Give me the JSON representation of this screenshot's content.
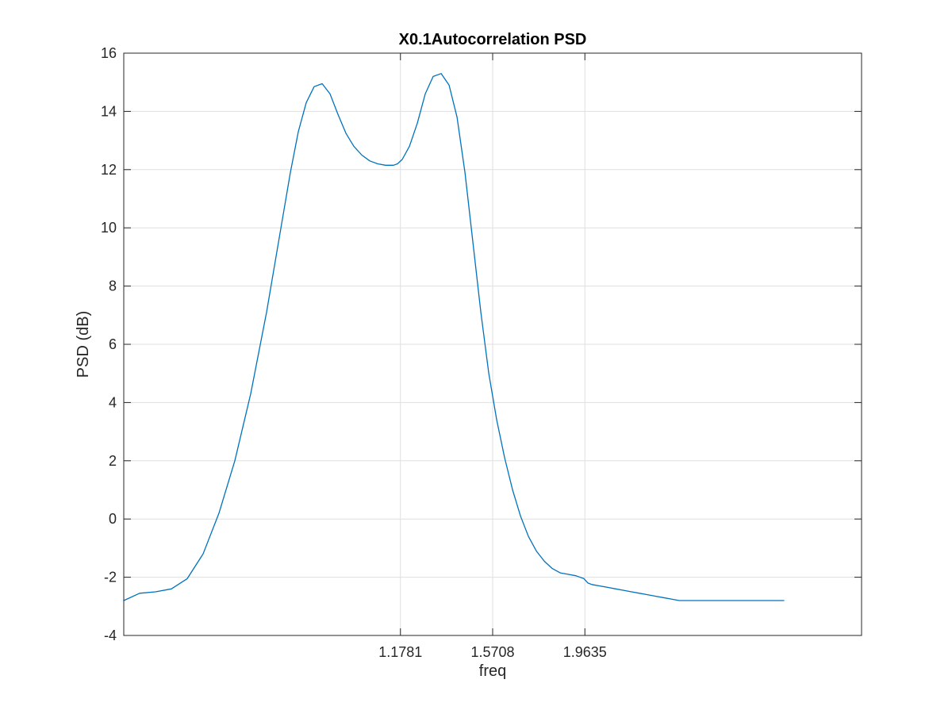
{
  "chart_data": {
    "type": "line",
    "title": "X0.1Autocorrelation PSD",
    "xlabel": "freq",
    "ylabel": "PSD (dB)",
    "xlim": [
      0,
      3.1416
    ],
    "ylim": [
      -4,
      16
    ],
    "xticks": [
      1.1781,
      1.5708,
      1.9635
    ],
    "xtick_labels": [
      "1.1781",
      "1.5708",
      "1.9635"
    ],
    "yticks": [
      -4,
      -2,
      0,
      2,
      4,
      6,
      8,
      10,
      12,
      14,
      16
    ],
    "ytick_labels": [
      "-4",
      "-2",
      "0",
      "2",
      "4",
      "6",
      "8",
      "10",
      "12",
      "14",
      "16"
    ],
    "grid": true,
    "line_color": "#0072bd",
    "series": [
      {
        "x": [
          0,
          0.0676,
          0.1352,
          0.2027,
          0.2703,
          0.3379,
          0.4055,
          0.473,
          0.5406,
          0.6082,
          0.6757,
          0.7095,
          0.7433,
          0.7771,
          0.8109,
          0.8447,
          0.8784,
          0.9122,
          0.946,
          0.9798,
          1.0136,
          1.0474,
          1.0812,
          1.1149,
          1.1487,
          1.1656,
          1.1858,
          1.2163,
          1.2501,
          1.2838,
          1.3176,
          1.3514,
          1.3852,
          1.419,
          1.4528,
          1.4866,
          1.5203,
          1.5541,
          1.5879,
          1.6217,
          1.6555,
          1.6893,
          1.7231,
          1.7568,
          1.7906,
          1.8244,
          1.8582,
          1.892,
          1.9258,
          1.9596,
          1.9765,
          1.9934,
          2.0271,
          2.0609,
          2.0947,
          2.1285,
          2.1623,
          2.1961,
          2.2298,
          2.2636,
          2.2974,
          2.3312,
          2.365,
          2.3988,
          2.4326,
          2.5001,
          2.5677,
          2.6353,
          2.7028,
          2.7704,
          2.811
        ],
        "y": [
          -2.8,
          -2.55,
          -2.5,
          -2.4,
          -2.05,
          -1.2,
          0.2,
          2.0,
          4.3,
          7.1,
          10.3,
          11.9,
          13.3,
          14.3,
          14.85,
          14.95,
          14.6,
          13.9,
          13.25,
          12.8,
          12.5,
          12.3,
          12.2,
          12.15,
          12.15,
          12.2,
          12.35,
          12.8,
          13.6,
          14.6,
          15.2,
          15.3,
          14.9,
          13.8,
          11.9,
          9.5,
          7.1,
          5.0,
          3.4,
          2.1,
          1.0,
          0.1,
          -0.6,
          -1.1,
          -1.45,
          -1.7,
          -1.85,
          -1.9,
          -1.95,
          -2.05,
          -2.2,
          -2.25,
          -2.3,
          -2.35,
          -2.4,
          -2.45,
          -2.5,
          -2.55,
          -2.6,
          -2.65,
          -2.7,
          -2.75,
          -2.8,
          -2.8,
          -2.8,
          -2.8,
          -2.8,
          -2.8,
          -2.8,
          -2.8,
          -2.8
        ]
      }
    ]
  }
}
